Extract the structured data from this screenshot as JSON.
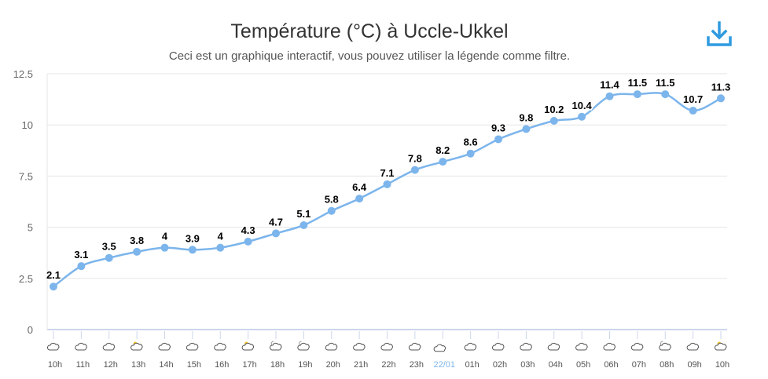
{
  "chart_data": {
    "type": "line",
    "title": "Température (°C) à Uccle-Ukkel",
    "subtitle": "Ceci est un graphique interactif, vous pouvez utiliser la légende comme filtre.",
    "categories": [
      "10h",
      "11h",
      "12h",
      "13h",
      "14h",
      "15h",
      "16h",
      "17h",
      "18h",
      "19h",
      "20h",
      "21h",
      "22h",
      "23h",
      "22/01",
      "01h",
      "02h",
      "03h",
      "04h",
      "05h",
      "06h",
      "07h",
      "08h",
      "09h",
      "10h"
    ],
    "weather_icons": [
      "cloud",
      "cloud",
      "cloud",
      "partly-sunny",
      "cloud",
      "cloud",
      "cloud",
      "partly-sunny",
      "night-cloud",
      "night-cloud",
      "cloud",
      "cloud",
      "cloud",
      "cloud",
      "cloud-large",
      "cloud",
      "cloud",
      "cloud",
      "cloud",
      "cloud",
      "cloud",
      "cloud",
      "night-cloud",
      "cloud",
      "partly-sunny"
    ],
    "series": [
      {
        "name": "Température",
        "values": [
          2.1,
          3.1,
          3.5,
          3.8,
          4,
          3.9,
          4,
          4.3,
          4.7,
          5.1,
          5.8,
          6.4,
          7.1,
          7.8,
          8.2,
          8.6,
          9.3,
          9.8,
          10.2,
          10.4,
          11.4,
          11.5,
          11.5,
          10.7,
          11.3
        ]
      }
    ],
    "yticks": [
      "0",
      "2.5",
      "5",
      "7.5",
      "10",
      "12.5"
    ],
    "ylim": [
      0,
      12.5
    ],
    "grid": true,
    "colors": {
      "line": "#7cb5ec",
      "grid": "#e6e6e6",
      "highlight": "#7cb5ec",
      "icon": "#2f9ae0"
    }
  },
  "toolbar": {
    "download_icon": "download-icon"
  }
}
